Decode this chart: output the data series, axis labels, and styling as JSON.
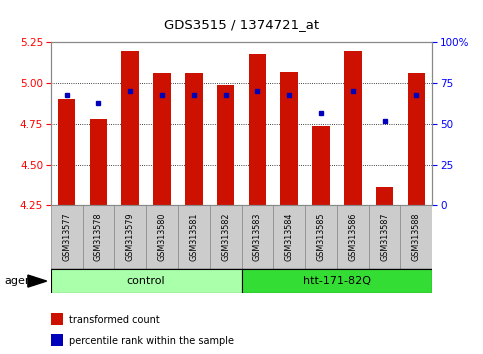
{
  "title": "GDS3515 / 1374721_at",
  "samples": [
    "GSM313577",
    "GSM313578",
    "GSM313579",
    "GSM313580",
    "GSM313581",
    "GSM313582",
    "GSM313583",
    "GSM313584",
    "GSM313585",
    "GSM313586",
    "GSM313587",
    "GSM313588"
  ],
  "red_values": [
    4.9,
    4.78,
    5.2,
    5.06,
    5.06,
    4.99,
    5.18,
    5.07,
    4.74,
    5.2,
    4.36,
    5.06
  ],
  "blue_values": [
    68,
    63,
    70,
    68,
    68,
    68,
    70,
    68,
    57,
    70,
    52,
    68
  ],
  "y_min": 4.25,
  "y_max": 5.25,
  "y_ticks": [
    4.25,
    4.5,
    4.75,
    5.0,
    5.25
  ],
  "y2_ticks": [
    0,
    25,
    50,
    75,
    100
  ],
  "y2_tick_labels": [
    "0",
    "25",
    "50",
    "75",
    "100%"
  ],
  "groups": [
    {
      "label": "control",
      "start": 0,
      "end": 6,
      "color": "#AAFFAA"
    },
    {
      "label": "htt-171-82Q",
      "start": 6,
      "end": 12,
      "color": "#33DD33"
    }
  ],
  "agent_label": "agent",
  "bar_color": "#CC1100",
  "dot_color": "#0000BB",
  "bar_width": 0.55,
  "tick_bg_color": "#CCCCCC",
  "legend_items": [
    {
      "label": "transformed count",
      "color": "#CC1100"
    },
    {
      "label": "percentile rank within the sample",
      "color": "#0000BB"
    }
  ],
  "grid_lines": [
    4.5,
    4.75,
    5.0
  ],
  "outer_border_color": "#888888"
}
